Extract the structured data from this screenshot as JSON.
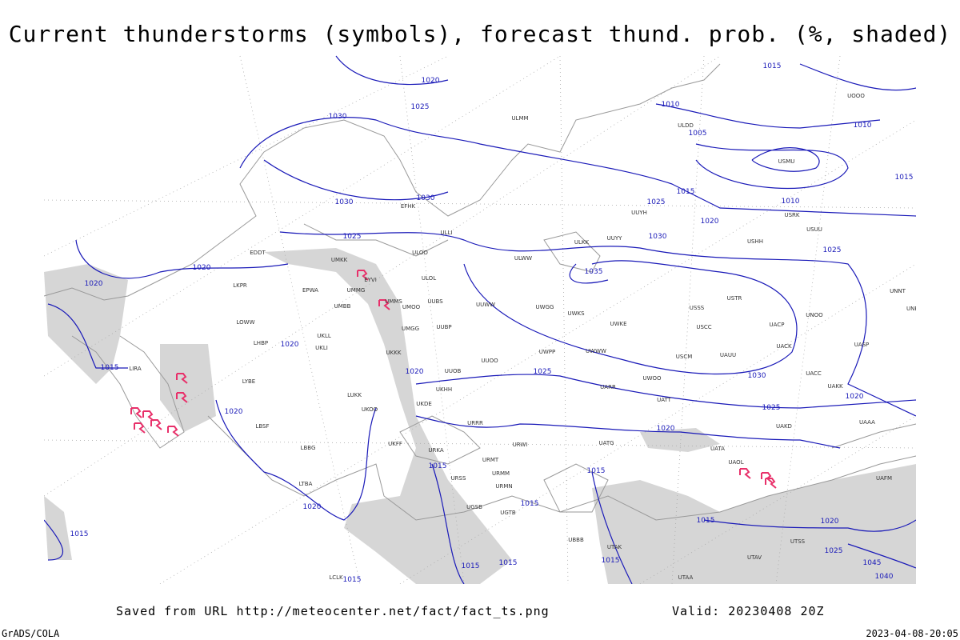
{
  "header": {
    "title": "Current thunderstorms (symbols), forecast thund. prob. (%, shaded)"
  },
  "footer": {
    "source": "Saved from URL http://meteocenter.net/fact/fact_ts.png",
    "valid": "Valid: 20230408 20Z",
    "software": "GrADS/COLA",
    "timestamp": "2023-04-08-20:05"
  },
  "isobar_labels": [
    1020,
    1015,
    1025,
    1030,
    1010,
    1005,
    1010,
    1015,
    1015,
    1025,
    1010,
    1030,
    1030,
    1020,
    1030,
    1025,
    1025,
    1035,
    1020,
    1020,
    1020,
    1015,
    1020,
    1025,
    1030,
    1020,
    1025,
    1020,
    1020,
    1015,
    1015,
    1015,
    1020,
    1015,
    1020,
    1015,
    1025,
    1015,
    1015,
    1015,
    1015,
    1045,
    1040
  ],
  "stations": [
    "EFHK",
    "ULLI",
    "ULOO",
    "ULOL",
    "UMMG",
    "UMKK",
    "EYVI",
    "UMMS",
    "UMBB",
    "UMOO",
    "UUBS",
    "UUBP",
    "UMGG",
    "UKKK",
    "UKLL",
    "UKLI",
    "EPWA",
    "EDDT",
    "LKPR",
    "LOWW",
    "LHBP",
    "LYBE",
    "LBSF",
    "LBBG",
    "LTBA",
    "LIRA",
    "LUKK",
    "UKOO",
    "UKHH",
    "UKDE",
    "UUOO",
    "UUOB",
    "UKFF",
    "URKA",
    "URRR",
    "URWI",
    "URMT",
    "URMM",
    "URMN",
    "URSS",
    "UGSB",
    "UGTB",
    "UBBB",
    "UTAK",
    "UATG",
    "UATT",
    "UWOO",
    "UARR",
    "UWWW",
    "UWKE",
    "UWPP",
    "UWKS",
    "UWGG",
    "UUWW",
    "UUYY",
    "ULWW",
    "ULKK",
    "USSS",
    "USCC",
    "USCM",
    "UAUU",
    "UACK",
    "UACP",
    "USTR",
    "UNOO",
    "UASP",
    "UACC",
    "UAKK",
    "UAKD",
    "UATA",
    "UAOL",
    "USHH",
    "USUU",
    "USRK",
    "USMU",
    "ULDD",
    "UOOO",
    "ULMM",
    "UUYH",
    "UNNT",
    "UNBB",
    "UAAA",
    "UAFM",
    "UTSS",
    "UTAV",
    "UTAA",
    "LCLK"
  ]
}
